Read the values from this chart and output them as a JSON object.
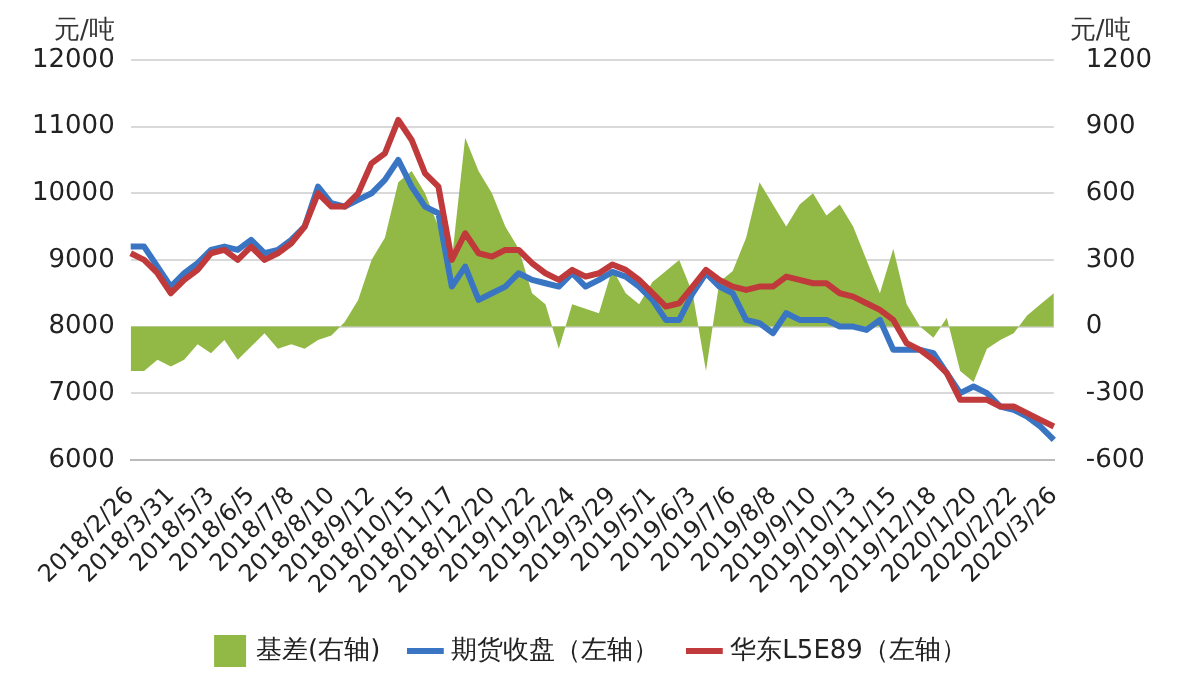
{
  "chart_data": {
    "type": "line",
    "ylabel": "元/吨",
    "y2label": "元/吨",
    "categories": [
      "2018/2/26",
      null,
      null,
      "2018/3/31",
      null,
      null,
      "2018/5/3",
      null,
      null,
      "2018/6/5",
      null,
      null,
      "2018/7/8",
      null,
      null,
      "2018/8/10",
      null,
      null,
      "2018/9/12",
      null,
      null,
      "2018/10/15",
      null,
      null,
      "2018/11/17",
      null,
      null,
      "2018/12/20",
      null,
      null,
      "2019/1/22",
      null,
      null,
      "2019/2/24",
      null,
      null,
      "2019/3/29",
      null,
      null,
      "2019/5/1",
      null,
      null,
      "2019/6/3",
      null,
      null,
      "2019/7/6",
      null,
      null,
      "2019/8/8",
      null,
      null,
      "2019/9/10",
      null,
      null,
      "2019/10/13",
      null,
      null,
      "2019/11/15",
      null,
      null,
      "2019/12/18",
      null,
      null,
      "2020/1/20",
      null,
      null,
      "2020/2/22",
      null,
      null,
      "2020/3/26"
    ],
    "series": [
      {
        "name": "基差(右轴)",
        "type": "area",
        "axis": "y2",
        "color": "#92b946",
        "values": [
          -200,
          -200,
          -150,
          -180,
          -150,
          -80,
          -120,
          -60,
          -150,
          -90,
          -30,
          -100,
          -80,
          -100,
          -60,
          -40,
          20,
          120,
          300,
          400,
          650,
          700,
          600,
          450,
          300,
          850,
          700,
          600,
          450,
          350,
          150,
          100,
          -100,
          100,
          80,
          60,
          260,
          150,
          100,
          200,
          250,
          300,
          150,
          -200,
          200,
          250,
          400,
          650,
          550,
          450,
          550,
          600,
          500,
          550,
          450,
          300,
          150,
          350,
          100,
          0,
          -50,
          40,
          -200,
          -250,
          -100,
          -60,
          -30,
          50,
          100,
          150
        ]
      },
      {
        "name": "期货收盘（左轴）",
        "type": "line",
        "color": "#3a75c4",
        "values": [
          9200,
          9200,
          8900,
          8600,
          8800,
          8950,
          9150,
          9200,
          9150,
          9300,
          9100,
          9150,
          9300,
          9500,
          10100,
          9850,
          9800,
          9900,
          10000,
          10200,
          10500,
          10100,
          9800,
          9700,
          8600,
          8900,
          8400,
          8500,
          8600,
          8800,
          8700,
          8650,
          8600,
          8800,
          8600,
          8700,
          8820,
          8750,
          8600,
          8400,
          8100,
          8100,
          8500,
          8800,
          8600,
          8500,
          8100,
          8050,
          7900,
          8200,
          8100,
          8100,
          8100,
          8000,
          8000,
          7950,
          8100,
          7650,
          7650,
          7650,
          7600,
          7300,
          7000,
          7100,
          7000,
          6800,
          6750,
          6650,
          6500,
          6300
        ]
      },
      {
        "name": "华东L5E89（左轴）",
        "type": "line",
        "color": "#c0393b",
        "values": [
          9100,
          9000,
          8800,
          8500,
          8700,
          8850,
          9100,
          9150,
          9000,
          9200,
          9000,
          9100,
          9250,
          9500,
          10000,
          9800,
          9800,
          10000,
          10450,
          10600,
          11100,
          10800,
          10300,
          10100,
          9000,
          9400,
          9100,
          9050,
          9150,
          9150,
          8950,
          8800,
          8700,
          8850,
          8750,
          8800,
          8930,
          8850,
          8700,
          8500,
          8300,
          8350,
          8600,
          8850,
          8700,
          8600,
          8550,
          8600,
          8600,
          8750,
          8700,
          8650,
          8650,
          8500,
          8450,
          8350,
          8250,
          8100,
          7750,
          7650,
          7500,
          7300,
          6900,
          6900,
          6900,
          6800,
          6800,
          6700,
          6600,
          6500
        ]
      }
    ],
    "ylim": [
      6000,
      12000
    ],
    "yticks": [
      6000,
      7000,
      8000,
      9000,
      10000,
      11000,
      12000
    ],
    "y2lim": [
      -600,
      1200
    ],
    "y2ticks": [
      -600,
      -300,
      0,
      300,
      600,
      900,
      1200
    ],
    "grid": "y",
    "legend": "bottom",
    "marker": "none",
    "line_style": "solid"
  }
}
